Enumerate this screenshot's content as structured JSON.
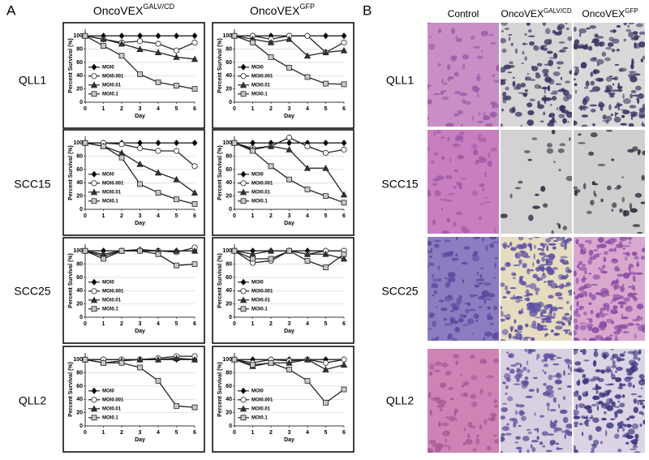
{
  "panel_a": {
    "label": "A",
    "columns": [
      {
        "base": "OncoVEX",
        "sup": "GALV/CD"
      },
      {
        "base": "OncoVEX",
        "sup": "GFP"
      }
    ],
    "rows": [
      "QLL1",
      "SCC15",
      "SCC25",
      "QLL2"
    ]
  },
  "panel_b": {
    "label": "B",
    "columns": [
      {
        "base": "Control"
      },
      {
        "base": "OncoVEX",
        "sup": "GALV/CD"
      },
      {
        "base": "OncoVEX",
        "sup": "GFP"
      }
    ],
    "rows": [
      "QLL1",
      "SCC15",
      "SCC25",
      "QLL2"
    ]
  },
  "chart_data": [
    {
      "type": "line",
      "x": [
        0,
        1,
        2,
        3,
        4,
        5,
        6
      ],
      "xlim": [
        0,
        6
      ],
      "xticks": [
        0,
        1,
        2,
        3,
        4,
        5,
        6
      ],
      "ylim": [
        0,
        110
      ],
      "yticks": [
        0,
        20,
        40,
        60,
        80,
        100
      ],
      "xlabel": "Day",
      "ylabel": "Percent Survival (%)",
      "grid": true,
      "legend": "lower-left",
      "series": [
        {
          "name": "MOI0",
          "color": "#000000",
          "marker": "diamond",
          "values": [
            100,
            100,
            100,
            100,
            100,
            100,
            100
          ]
        },
        {
          "name": "MOI0.001",
          "color": "#ffffff",
          "marker": "circle",
          "values": [
            100,
            95,
            90,
            92,
            88,
            78,
            90
          ]
        },
        {
          "name": "MOI0.01",
          "color": "#333333",
          "marker": "triangle",
          "values": [
            100,
            95,
            88,
            80,
            75,
            68,
            65
          ]
        },
        {
          "name": "MOI0.1",
          "color": "#c8c8c8",
          "marker": "square",
          "values": [
            100,
            85,
            70,
            42,
            30,
            25,
            20
          ]
        }
      ]
    },
    {
      "type": "line",
      "x": [
        0,
        1,
        2,
        3,
        4,
        5,
        6
      ],
      "xlim": [
        0,
        6
      ],
      "xticks": [
        0,
        1,
        2,
        3,
        4,
        5,
        6
      ],
      "ylim": [
        0,
        110
      ],
      "yticks": [
        0,
        20,
        40,
        60,
        80,
        100
      ],
      "xlabel": "Day",
      "ylabel": "Percent Survival (%)",
      "grid": true,
      "legend": "lower-left",
      "series": [
        {
          "name": "MOI0",
          "color": "#000000",
          "marker": "diamond",
          "values": [
            100,
            100,
            100,
            100,
            100,
            100,
            100
          ]
        },
        {
          "name": "MOI0.001",
          "color": "#ffffff",
          "marker": "circle",
          "values": [
            100,
            100,
            95,
            100,
            100,
            75,
            90
          ]
        },
        {
          "name": "MOI0.01",
          "color": "#333333",
          "marker": "triangle",
          "values": [
            100,
            95,
            90,
            95,
            70,
            75,
            78
          ]
        },
        {
          "name": "MOI0.1",
          "color": "#c8c8c8",
          "marker": "square",
          "values": [
            100,
            90,
            68,
            52,
            38,
            28,
            27
          ]
        }
      ]
    },
    {
      "type": "line",
      "x": [
        0,
        1,
        2,
        3,
        4,
        5,
        6
      ],
      "xlim": [
        0,
        6
      ],
      "xticks": [
        0,
        1,
        2,
        3,
        4,
        5,
        6
      ],
      "ylim": [
        0,
        110
      ],
      "yticks": [
        0,
        20,
        40,
        60,
        80,
        100
      ],
      "xlabel": "Day",
      "ylabel": "Percent Survival (%)",
      "grid": true,
      "legend": "lower-left",
      "series": [
        {
          "name": "MOI0",
          "color": "#000000",
          "marker": "diamond",
          "values": [
            100,
            100,
            100,
            100,
            100,
            100,
            100
          ]
        },
        {
          "name": "MOI0.001",
          "color": "#ffffff",
          "marker": "circle",
          "values": [
            100,
            100,
            98,
            92,
            88,
            88,
            65
          ]
        },
        {
          "name": "MOI0.01",
          "color": "#333333",
          "marker": "triangle",
          "values": [
            100,
            95,
            85,
            68,
            55,
            45,
            25
          ]
        },
        {
          "name": "MOI0.1",
          "color": "#c8c8c8",
          "marker": "square",
          "values": [
            100,
            95,
            78,
            38,
            25,
            15,
            8
          ]
        }
      ]
    },
    {
      "type": "line",
      "x": [
        0,
        1,
        2,
        3,
        4,
        5,
        6
      ],
      "xlim": [
        0,
        6
      ],
      "xticks": [
        0,
        1,
        2,
        3,
        4,
        5,
        6
      ],
      "ylim": [
        0,
        110
      ],
      "yticks": [
        0,
        20,
        40,
        60,
        80,
        100
      ],
      "xlabel": "Day",
      "ylabel": "Percent Survival (%)",
      "grid": true,
      "legend": "lower-left",
      "series": [
        {
          "name": "MOI0",
          "color": "#000000",
          "marker": "diamond",
          "values": [
            100,
            100,
            100,
            100,
            100,
            100,
            100
          ]
        },
        {
          "name": "MOI0.001",
          "color": "#ffffff",
          "marker": "circle",
          "values": [
            100,
            92,
            95,
            108,
            95,
            85,
            90
          ]
        },
        {
          "name": "MOI0.01",
          "color": "#333333",
          "marker": "triangle",
          "values": [
            100,
            90,
            95,
            90,
            62,
            62,
            22
          ]
        },
        {
          "name": "MOI0.1",
          "color": "#c8c8c8",
          "marker": "square",
          "values": [
            100,
            88,
            65,
            45,
            30,
            20,
            10
          ]
        }
      ]
    },
    {
      "type": "line",
      "x": [
        0,
        1,
        2,
        3,
        4,
        5,
        6
      ],
      "xlim": [
        0,
        6
      ],
      "xticks": [
        0,
        1,
        2,
        3,
        4,
        5,
        6
      ],
      "ylim": [
        0,
        110
      ],
      "yticks": [
        0,
        20,
        40,
        60,
        80,
        100
      ],
      "xlabel": "Day",
      "ylabel": "Percent Survival (%)",
      "grid": true,
      "legend": "lower-left",
      "series": [
        {
          "name": "MOI0",
          "color": "#000000",
          "marker": "diamond",
          "values": [
            100,
            100,
            100,
            100,
            100,
            100,
            100
          ]
        },
        {
          "name": "MOI0.001",
          "color": "#ffffff",
          "marker": "circle",
          "values": [
            100,
            92,
            100,
            100,
            100,
            98,
            105
          ]
        },
        {
          "name": "MOI0.01",
          "color": "#333333",
          "marker": "triangle",
          "values": [
            100,
            95,
            100,
            102,
            100,
            100,
            100
          ]
        },
        {
          "name": "MOI0.1",
          "color": "#c8c8c8",
          "marker": "square",
          "values": [
            100,
            88,
            100,
            100,
            95,
            78,
            80
          ]
        }
      ]
    },
    {
      "type": "line",
      "x": [
        0,
        1,
        2,
        3,
        4,
        5,
        6
      ],
      "xlim": [
        0,
        6
      ],
      "xticks": [
        0,
        1,
        2,
        3,
        4,
        5,
        6
      ],
      "ylim": [
        0,
        110
      ],
      "yticks": [
        0,
        20,
        40,
        60,
        80,
        100
      ],
      "xlabel": "Day",
      "ylabel": "Percent Survival (%)",
      "grid": true,
      "legend": "lower-left",
      "series": [
        {
          "name": "MOI0",
          "color": "#000000",
          "marker": "diamond",
          "values": [
            100,
            100,
            100,
            100,
            100,
            100,
            100
          ]
        },
        {
          "name": "MOI0.001",
          "color": "#ffffff",
          "marker": "circle",
          "values": [
            100,
            82,
            85,
            100,
            95,
            100,
            100
          ]
        },
        {
          "name": "MOI0.01",
          "color": "#333333",
          "marker": "triangle",
          "values": [
            100,
            95,
            100,
            100,
            95,
            95,
            88
          ]
        },
        {
          "name": "MOI0.1",
          "color": "#c8c8c8",
          "marker": "square",
          "values": [
            100,
            88,
            88,
            100,
            85,
            75,
            95
          ]
        }
      ]
    },
    {
      "type": "line",
      "x": [
        0,
        1,
        2,
        3,
        4,
        5,
        6
      ],
      "xlim": [
        0,
        6
      ],
      "xticks": [
        0,
        1,
        2,
        3,
        4,
        5,
        6
      ],
      "ylim": [
        0,
        110
      ],
      "yticks": [
        0,
        20,
        40,
        60,
        80,
        100
      ],
      "xlabel": "Day",
      "ylabel": "Percent Survival (%)",
      "grid": true,
      "legend": "lower-left",
      "series": [
        {
          "name": "MOI0",
          "color": "#000000",
          "marker": "diamond",
          "values": [
            100,
            100,
            100,
            100,
            100,
            100,
            100
          ]
        },
        {
          "name": "MOI0.001",
          "color": "#ffffff",
          "marker": "circle",
          "values": [
            100,
            100,
            100,
            100,
            102,
            105,
            105
          ]
        },
        {
          "name": "MOI0.01",
          "color": "#333333",
          "marker": "triangle",
          "values": [
            100,
            95,
            98,
            100,
            100,
            102,
            100
          ]
        },
        {
          "name": "MOI0.1",
          "color": "#c8c8c8",
          "marker": "square",
          "values": [
            100,
            95,
            95,
            88,
            68,
            30,
            28
          ]
        }
      ]
    },
    {
      "type": "line",
      "x": [
        0,
        1,
        2,
        3,
        4,
        5,
        6
      ],
      "xlim": [
        0,
        6
      ],
      "xticks": [
        0,
        1,
        2,
        3,
        4,
        5,
        6
      ],
      "ylim": [
        0,
        110
      ],
      "yticks": [
        0,
        20,
        40,
        60,
        80,
        100
      ],
      "xlabel": "Day",
      "ylabel": "Percent Survival (%)",
      "grid": true,
      "legend": "lower-left",
      "series": [
        {
          "name": "MOI0",
          "color": "#000000",
          "marker": "diamond",
          "values": [
            100,
            100,
            100,
            100,
            100,
            100,
            100
          ]
        },
        {
          "name": "MOI0.001",
          "color": "#ffffff",
          "marker": "circle",
          "values": [
            100,
            95,
            100,
            98,
            100,
            95,
            100
          ]
        },
        {
          "name": "MOI0.01",
          "color": "#333333",
          "marker": "triangle",
          "values": [
            100,
            90,
            95,
            95,
            100,
            85,
            92
          ]
        },
        {
          "name": "MOI0.1",
          "color": "#c8c8c8",
          "marker": "square",
          "values": [
            100,
            92,
            95,
            85,
            68,
            35,
            55
          ]
        }
      ]
    }
  ]
}
